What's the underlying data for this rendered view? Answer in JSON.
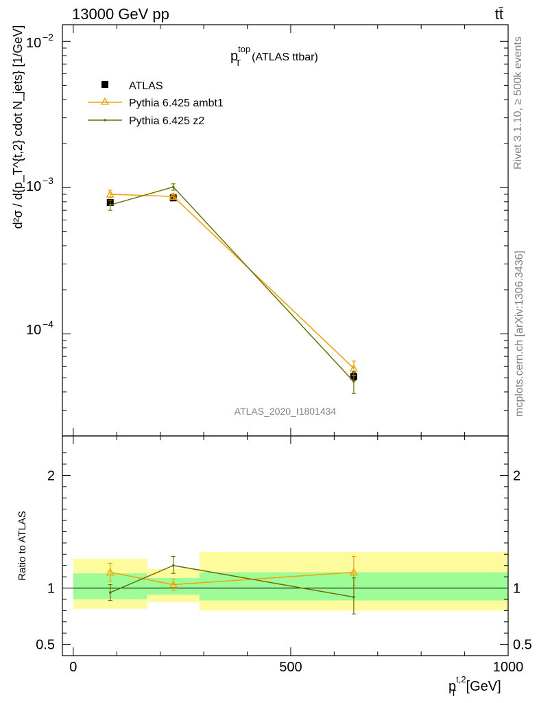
{
  "header": {
    "energy_label": "13000 GeV pp",
    "process_label": "tt̄"
  },
  "side_labels": {
    "rivet": "Rivet 3.1.10, ≥ 500k events",
    "mcplots": "mcplots.cern.ch [arXiv:1306.3436]"
  },
  "chart_data": [
    {
      "type": "line",
      "panel": "main",
      "title_main": "p",
      "title_sup": "top",
      "title_sub": "T",
      "title_rest": "(ATLAS ttbar)",
      "watermark": "ATLAS_2020_I1801434",
      "ylabel": "d²σ / d{p_T^{t,2} cdot N_jets} [1/GeV]",
      "yscale": "log",
      "ylim": [
        2e-05,
        0.013
      ],
      "xlim": [
        -25,
        1000
      ],
      "y_tick_labels": [
        "10",
        "10",
        "10"
      ],
      "y_tick_exponents": [
        "−2",
        "−3",
        "−4"
      ],
      "legend_position": "top-left",
      "x_bins": [
        [
          0,
          170
        ],
        [
          170,
          290
        ],
        [
          290,
          1000
        ]
      ],
      "series": [
        {
          "name": "ATLAS",
          "color": "#000000",
          "marker": "square",
          "x": [
            85,
            230,
            645
          ],
          "y": [
            0.00079,
            0.00085,
            5.1e-05
          ],
          "yerr_low": [
            0.00077,
            0.00083,
            4.8e-05
          ],
          "yerr_high": [
            0.00081,
            0.00087,
            5.4e-05
          ]
        },
        {
          "name": "Pythia 6.425 ambt1",
          "color": "#f5a000",
          "marker": "triangle",
          "x": [
            85,
            230,
            645
          ],
          "y": [
            0.0009,
            0.00087,
            5.8e-05
          ],
          "yerr_low": [
            0.00085,
            0.00083,
            5.2e-05
          ],
          "yerr_high": [
            0.00096,
            0.00091,
            6.5e-05
          ]
        },
        {
          "name": "Pythia 6.425 z2",
          "color": "#6b7000",
          "marker": "dot",
          "x": [
            85,
            230,
            645
          ],
          "y": [
            0.00076,
            0.00101,
            4.7e-05
          ],
          "yerr_low": [
            0.0007,
            0.00096,
            3.9e-05
          ],
          "yerr_high": [
            0.00082,
            0.00106,
            5.5e-05
          ]
        }
      ]
    },
    {
      "type": "line",
      "panel": "ratio",
      "ylabel": "Ratio to ATLAS",
      "xlabel_main": "p",
      "xlabel_sup": "t,2",
      "xlabel_sub": "T",
      "xlabel_rest": "[GeV]",
      "xlim": [
        -25,
        1000
      ],
      "ylim": [
        0.4,
        2.35
      ],
      "y_tick_labels": [
        "2",
        "1",
        "0.5"
      ],
      "y_tick_values": [
        2,
        1,
        0.5
      ],
      "x_tick_labels": [
        "0",
        "500",
        "1000"
      ],
      "x_tick_values": [
        0,
        500,
        1000
      ],
      "bands": [
        {
          "x0": 0,
          "x1": 170,
          "yellow": [
            0.815,
            1.26
          ],
          "green": [
            0.9,
            1.13
          ]
        },
        {
          "x0": 170,
          "x1": 290,
          "yellow": [
            0.875,
            1.17
          ],
          "green": [
            0.94,
            1.09
          ]
        },
        {
          "x0": 290,
          "x1": 1000,
          "yellow": [
            0.8,
            1.32
          ],
          "green": [
            0.89,
            1.14
          ]
        }
      ],
      "band_colors": {
        "yellow": "#fdfb9c",
        "green": "#9dfb98"
      },
      "series": [
        {
          "name": "Pythia 6.425 ambt1",
          "color": "#f5a000",
          "marker": "triangle",
          "x": [
            85,
            230,
            645
          ],
          "y": [
            1.14,
            1.03,
            1.14
          ],
          "yerr_low": [
            1.06,
            0.98,
            1.02
          ],
          "yerr_high": [
            1.22,
            1.08,
            1.28
          ]
        },
        {
          "name": "Pythia 6.425 z2",
          "color": "#6b7000",
          "marker": "dot",
          "x": [
            85,
            230,
            645
          ],
          "y": [
            0.96,
            1.2,
            0.92
          ],
          "yerr_low": [
            0.89,
            1.13,
            0.77
          ],
          "yerr_high": [
            1.03,
            1.28,
            1.09
          ]
        }
      ]
    }
  ]
}
